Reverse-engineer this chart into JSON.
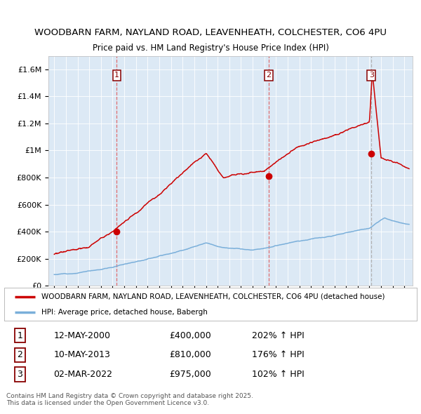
{
  "title1": "WOODBARN FARM, NAYLAND ROAD, LEAVENHEATH, COLCHESTER, CO6 4PU",
  "title2": "Price paid vs. HM Land Registry's House Price Index (HPI)",
  "legend_red": "WOODBARN FARM, NAYLAND ROAD, LEAVENHEATH, COLCHESTER, CO6 4PU (detached house)",
  "legend_blue": "HPI: Average price, detached house, Babergh",
  "footer": "Contains HM Land Registry data © Crown copyright and database right 2025.\nThis data is licensed under the Open Government Licence v3.0.",
  "transactions": [
    {
      "num": 1,
      "date": "12-MAY-2000",
      "price": 400000,
      "pct": "202% ↑ HPI",
      "year": 2000.36
    },
    {
      "num": 2,
      "date": "10-MAY-2013",
      "price": 810000,
      "pct": "176% ↑ HPI",
      "year": 2013.36
    },
    {
      "num": 3,
      "date": "02-MAR-2022",
      "price": 975000,
      "pct": "102% ↑ HPI",
      "year": 2022.17
    }
  ],
  "ylim": [
    0,
    1700000
  ],
  "xlim_start": 1994.5,
  "xlim_end": 2025.7,
  "bg_color": "#dce9f5",
  "red_color": "#cc0000",
  "blue_color": "#7aafda",
  "dashed_red": "#e06060",
  "dashed_grey": "#aaaaaa",
  "grid_color": "#ffffff",
  "title1_fontsize": 9.5,
  "title2_fontsize": 8.5
}
